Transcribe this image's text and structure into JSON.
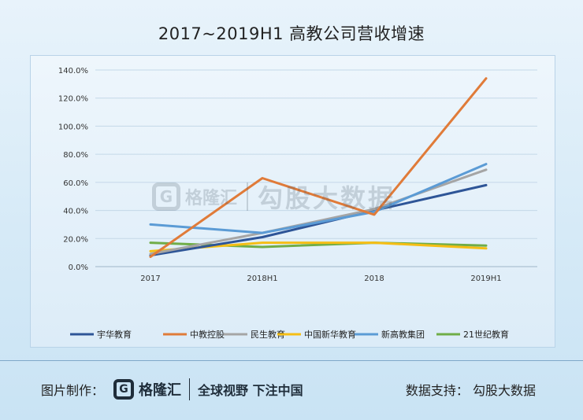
{
  "chart_data": {
    "type": "line",
    "title": "2017~2019H1 高教公司营收增速",
    "categories": [
      "2017",
      "2018H1",
      "2018",
      "2019H1"
    ],
    "ylim": [
      0,
      140
    ],
    "yticks": [
      "0.0%",
      "20.0%",
      "40.0%",
      "60.0%",
      "80.0%",
      "100.0%",
      "120.0%",
      "140.0%"
    ],
    "ytick_values": [
      0,
      20,
      40,
      60,
      80,
      100,
      120,
      140
    ],
    "grid": true,
    "legend_position": "bottom",
    "series": [
      {
        "name": "宇华教育",
        "color": "#2e5597",
        "values": [
          8,
          21,
          40,
          58
        ]
      },
      {
        "name": "中教控股",
        "color": "#e07b39",
        "values": [
          7,
          63,
          37,
          134
        ]
      },
      {
        "name": "民生教育",
        "color": "#a5a5a5",
        "values": [
          9,
          24,
          41,
          69
        ]
      },
      {
        "name": "中国新华教育",
        "color": "#f5be15",
        "values": [
          11,
          17,
          17,
          13
        ]
      },
      {
        "name": "新高教集团",
        "color": "#5b9bd5",
        "values": [
          30,
          24,
          39,
          73
        ]
      },
      {
        "name": "21世纪教育",
        "color": "#70ad47",
        "values": [
          17,
          14,
          17,
          15
        ]
      }
    ]
  },
  "watermark": {
    "logo_char": "G",
    "brand": "格隆汇",
    "slogan": "勾股大数据"
  },
  "footer": {
    "made_label": "图片制作：",
    "logo_char": "G",
    "brand": "格隆汇",
    "slogan": "全球视野 下注中国",
    "support": "数据支持： 勾股大数据"
  }
}
